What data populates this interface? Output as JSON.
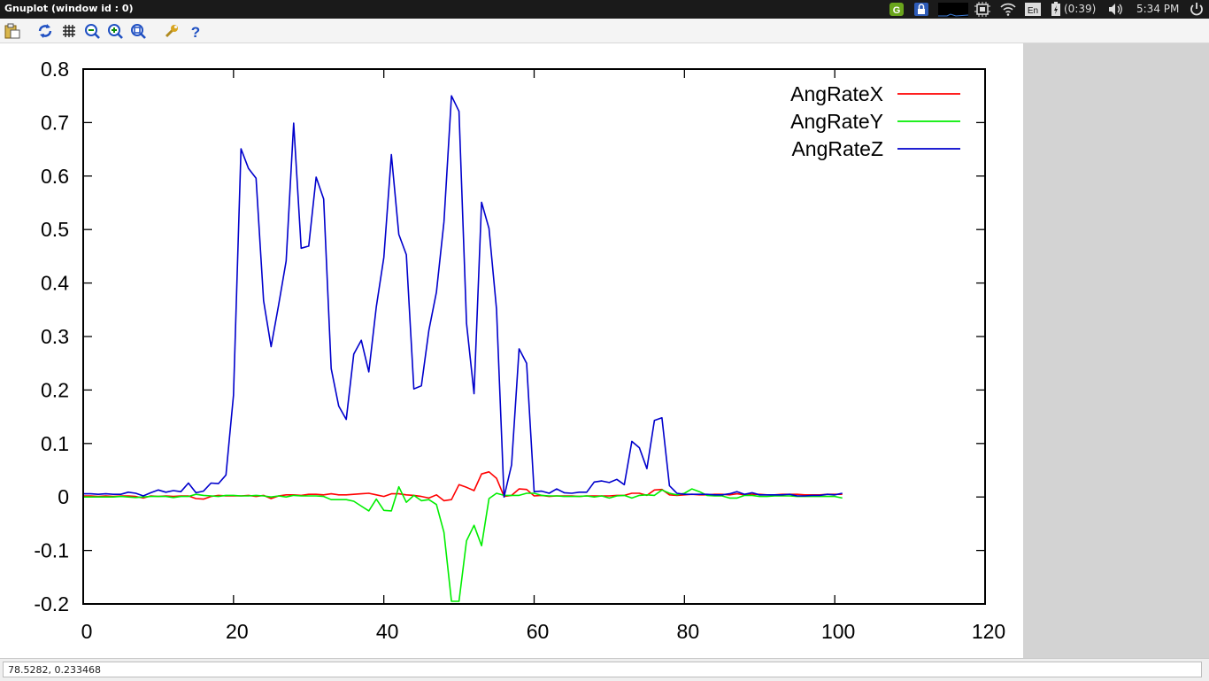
{
  "window": {
    "title": "Gnuplot (window id : 0)"
  },
  "tray": {
    "battery_text": "(0:39)",
    "time": "5:34 PM",
    "lang": "En"
  },
  "toolbar": {
    "items": [
      {
        "icon": "clipboard-icon"
      },
      {
        "icon": "refresh-icon"
      },
      {
        "icon": "grid-icon"
      },
      {
        "icon": "zoom-previous-icon"
      },
      {
        "icon": "zoom-next-icon"
      },
      {
        "icon": "zoom-unzoom-icon"
      },
      {
        "icon": "wrench-icon"
      },
      {
        "icon": "help-icon"
      }
    ]
  },
  "status": {
    "coords": "78.5282,  0.233468"
  },
  "chart_data": {
    "type": "line",
    "title": "",
    "xlabel": "",
    "ylabel": "",
    "xlim": [
      0,
      120
    ],
    "ylim": [
      -0.2,
      0.8
    ],
    "xticks": [
      0,
      20,
      40,
      60,
      80,
      100,
      120
    ],
    "yticks": [
      -0.2,
      -0.1,
      0,
      0.1,
      0.2,
      0.3,
      0.4,
      0.5,
      0.6,
      0.7,
      0.8
    ],
    "xtick_labels": [
      "0",
      "20",
      "40",
      "60",
      "80",
      "100",
      "120"
    ],
    "ytick_labels": [
      "-0.2",
      "-0.1",
      "0",
      "0.1",
      "0.2",
      "0.3",
      "0.4",
      "0.5",
      "0.6",
      "0.7",
      "0.8"
    ],
    "grid": false,
    "legend": "top-right",
    "series": [
      {
        "name": "AngRateX",
        "color": "#ff0000",
        "x": [
          0,
          1,
          2,
          3,
          4,
          5,
          6,
          7,
          8,
          9,
          10,
          11,
          12,
          13,
          14,
          15,
          16,
          17,
          18,
          19,
          20,
          21,
          22,
          23,
          24,
          25,
          26,
          27,
          28,
          29,
          30,
          31,
          32,
          33,
          34,
          35,
          36,
          37,
          38,
          39,
          40,
          41,
          42,
          43,
          44,
          45,
          46,
          47,
          48,
          49,
          50,
          51,
          52,
          53,
          54,
          55,
          56,
          57,
          58,
          59,
          60,
          61,
          62,
          63,
          64,
          65,
          66,
          67,
          68,
          69,
          70,
          71,
          72,
          73,
          74,
          75,
          76,
          77,
          78,
          79,
          80,
          81,
          82,
          83,
          84,
          85,
          86,
          87,
          88,
          89,
          90,
          91,
          92,
          93,
          94,
          95,
          96,
          97,
          98,
          99,
          100,
          101
        ],
        "y": [
          0.002,
          0.002,
          0.001,
          0.002,
          0.001,
          0.002,
          0.002,
          0.001,
          -0.002,
          0.002,
          0.001,
          0.002,
          0.001,
          0.002,
          0.002,
          -0.003,
          -0.004,
          0.001,
          0.003,
          0.002,
          0.002,
          0.002,
          0.003,
          0.001,
          0.003,
          -0.003,
          0.002,
          0.004,
          0.004,
          0.003,
          0.005,
          0.005,
          0.004,
          0.006,
          0.004,
          0.004,
          0.005,
          0.006,
          0.007,
          0.004,
          0.001,
          0.006,
          0.006,
          0.004,
          0.003,
          0.001,
          -0.002,
          0.004,
          -0.007,
          -0.005,
          0.023,
          0.018,
          0.012,
          0.043,
          0.047,
          0.035,
          0.001,
          0.003,
          0.015,
          0.014,
          0.002,
          0.003,
          0.001,
          0.002,
          0.002,
          0.002,
          0.001,
          0.002,
          0.002,
          0.002,
          0.002,
          0.003,
          0.003,
          0.007,
          0.007,
          0.003,
          0.013,
          0.014,
          0.004,
          0.003,
          0.004,
          0.005,
          0.004,
          0.004,
          0.005,
          0.005,
          0.004,
          0.006,
          0.004,
          0.005,
          0.005,
          0.004,
          0.004,
          0.005,
          0.005,
          0.005,
          0.004,
          0.004,
          0.004,
          0.005,
          0.005,
          0.005
        ]
      },
      {
        "name": "AngRateY",
        "color": "#00ee00",
        "x": [
          0,
          1,
          2,
          3,
          4,
          5,
          6,
          7,
          8,
          9,
          10,
          11,
          12,
          13,
          14,
          15,
          16,
          17,
          18,
          19,
          20,
          21,
          22,
          23,
          24,
          25,
          26,
          27,
          28,
          29,
          30,
          31,
          32,
          33,
          34,
          35,
          36,
          37,
          38,
          39,
          40,
          41,
          42,
          43,
          44,
          45,
          46,
          47,
          48,
          49,
          50,
          51,
          52,
          53,
          54,
          55,
          56,
          57,
          58,
          59,
          60,
          61,
          62,
          63,
          64,
          65,
          66,
          67,
          68,
          69,
          70,
          71,
          72,
          73,
          74,
          75,
          76,
          77,
          78,
          79,
          80,
          81,
          82,
          83,
          84,
          85,
          86,
          87,
          88,
          89,
          90,
          91,
          92,
          93,
          94,
          95,
          96,
          97,
          98,
          99,
          100,
          101
        ],
        "y": [
          0.0,
          0.0,
          0.0,
          0.0,
          0.0,
          0.001,
          0.0,
          -0.001,
          0.0,
          0.001,
          0.001,
          0.001,
          -0.001,
          0.001,
          0.001,
          0.005,
          0.003,
          0.002,
          0.001,
          0.003,
          0.003,
          0.002,
          0.002,
          0.003,
          0.002,
          0.0,
          0.002,
          0.0,
          0.003,
          0.002,
          0.002,
          0.002,
          0.001,
          -0.005,
          -0.005,
          -0.005,
          -0.008,
          -0.017,
          -0.026,
          -0.004,
          -0.025,
          -0.026,
          0.019,
          -0.01,
          0.003,
          -0.007,
          -0.005,
          -0.014,
          -0.066,
          -0.195,
          -0.195,
          -0.082,
          -0.053,
          -0.091,
          -0.003,
          0.007,
          0.003,
          0.003,
          0.003,
          0.007,
          0.007,
          0.003,
          0.002,
          0.002,
          0.001,
          0.001,
          0.001,
          0.002,
          0.0,
          0.002,
          -0.002,
          0.002,
          0.003,
          -0.002,
          0.003,
          0.004,
          0.003,
          0.013,
          0.007,
          0.004,
          0.007,
          0.015,
          0.01,
          0.003,
          0.002,
          0.002,
          -0.002,
          -0.002,
          0.003,
          0.003,
          0.001,
          0.001,
          0.002,
          0.002,
          0.002,
          0.001,
          0.001,
          0.001,
          0.001,
          0.001,
          0.001,
          -0.002
        ]
      },
      {
        "name": "AngRateZ",
        "color": "#0000cc",
        "x": [
          0,
          1,
          2,
          3,
          4,
          5,
          6,
          7,
          8,
          9,
          10,
          11,
          12,
          13,
          14,
          15,
          16,
          17,
          18,
          19,
          20,
          21,
          22,
          23,
          24,
          25,
          26,
          27,
          28,
          29,
          30,
          31,
          32,
          33,
          34,
          35,
          36,
          37,
          38,
          39,
          40,
          41,
          42,
          43,
          44,
          45,
          46,
          47,
          48,
          49,
          50,
          51,
          52,
          53,
          54,
          55,
          56,
          57,
          58,
          59,
          60,
          61,
          62,
          63,
          64,
          65,
          66,
          67,
          68,
          69,
          70,
          71,
          72,
          73,
          74,
          75,
          76,
          77,
          78,
          79,
          80,
          81,
          82,
          83,
          84,
          85,
          86,
          87,
          88,
          89,
          90,
          91,
          92,
          93,
          94,
          95,
          96,
          97,
          98,
          99,
          100,
          101
        ],
        "y": [
          0.006,
          0.006,
          0.005,
          0.006,
          0.005,
          0.005,
          0.009,
          0.007,
          0.002,
          0.008,
          0.013,
          0.009,
          0.012,
          0.01,
          0.026,
          0.008,
          0.011,
          0.026,
          0.025,
          0.041,
          0.19,
          0.651,
          0.614,
          0.596,
          0.367,
          0.281,
          0.359,
          0.441,
          0.699,
          0.465,
          0.469,
          0.598,
          0.557,
          0.24,
          0.17,
          0.145,
          0.267,
          0.293,
          0.234,
          0.356,
          0.448,
          0.64,
          0.491,
          0.453,
          0.202,
          0.208,
          0.312,
          0.383,
          0.514,
          0.75,
          0.721,
          0.325,
          0.193,
          0.551,
          0.502,
          0.351,
          0.0,
          0.06,
          0.277,
          0.25,
          0.01,
          0.011,
          0.007,
          0.015,
          0.008,
          0.007,
          0.009,
          0.009,
          0.028,
          0.03,
          0.027,
          0.033,
          0.023,
          0.104,
          0.092,
          0.053,
          0.143,
          0.148,
          0.021,
          0.007,
          0.005,
          0.005,
          0.005,
          0.005,
          0.004,
          0.004,
          0.006,
          0.01,
          0.005,
          0.008,
          0.004,
          0.004,
          0.004,
          0.004,
          0.005,
          0.002,
          0.002,
          0.003,
          0.003,
          0.005,
          0.004,
          0.007
        ]
      }
    ]
  }
}
